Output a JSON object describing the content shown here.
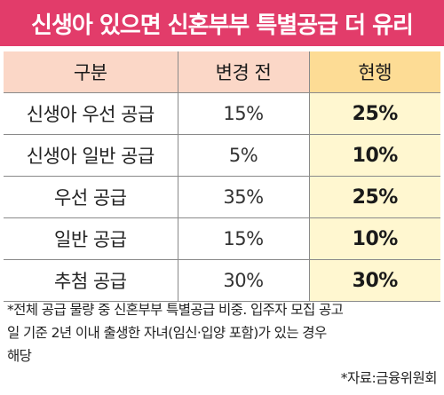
{
  "title": "신생아 있으면 신혼부부 특별공급 더 유리",
  "colors": {
    "header_bg": "#e23c6a",
    "table_header_bg": "#fbd7c7",
    "current_header_bg": "#fddc95",
    "current_column_bg": "#fff7d0"
  },
  "table": {
    "headers": [
      "구분",
      "변경 전",
      "현행"
    ],
    "rows": [
      {
        "category": "신생아 우선 공급",
        "before": "15%",
        "current": "25%"
      },
      {
        "category": "신생아 일반 공급",
        "before": "5%",
        "current": "10%"
      },
      {
        "category": "우선 공급",
        "before": "35%",
        "current": "25%"
      },
      {
        "category": "일반 공급",
        "before": "15%",
        "current": "10%"
      },
      {
        "category": "추첨 공급",
        "before": "30%",
        "current": "30%"
      }
    ]
  },
  "chart_data": {
    "type": "table",
    "title": "신생아 있으면 신혼부부 특별공급 더 유리",
    "columns": [
      "구분",
      "변경 전",
      "현행"
    ],
    "rows": [
      [
        "신생아 우선 공급",
        "15%",
        "25%"
      ],
      [
        "신생아 일반 공급",
        "5%",
        "10%"
      ],
      [
        "우선 공급",
        "35%",
        "25%"
      ],
      [
        "일반 공급",
        "15%",
        "10%"
      ],
      [
        "추첨 공급",
        "30%",
        "30%"
      ]
    ]
  },
  "footnote": {
    "line1": "*전체 공급 물량 중 신혼부부 특별공급 비중. 입주자 모집 공고",
    "line2": "일 기준 2년 이내 출생한 자녀(임신·입양 포함)가 있는 경우",
    "line3": "해당"
  },
  "source": "*자료:금융위원회"
}
